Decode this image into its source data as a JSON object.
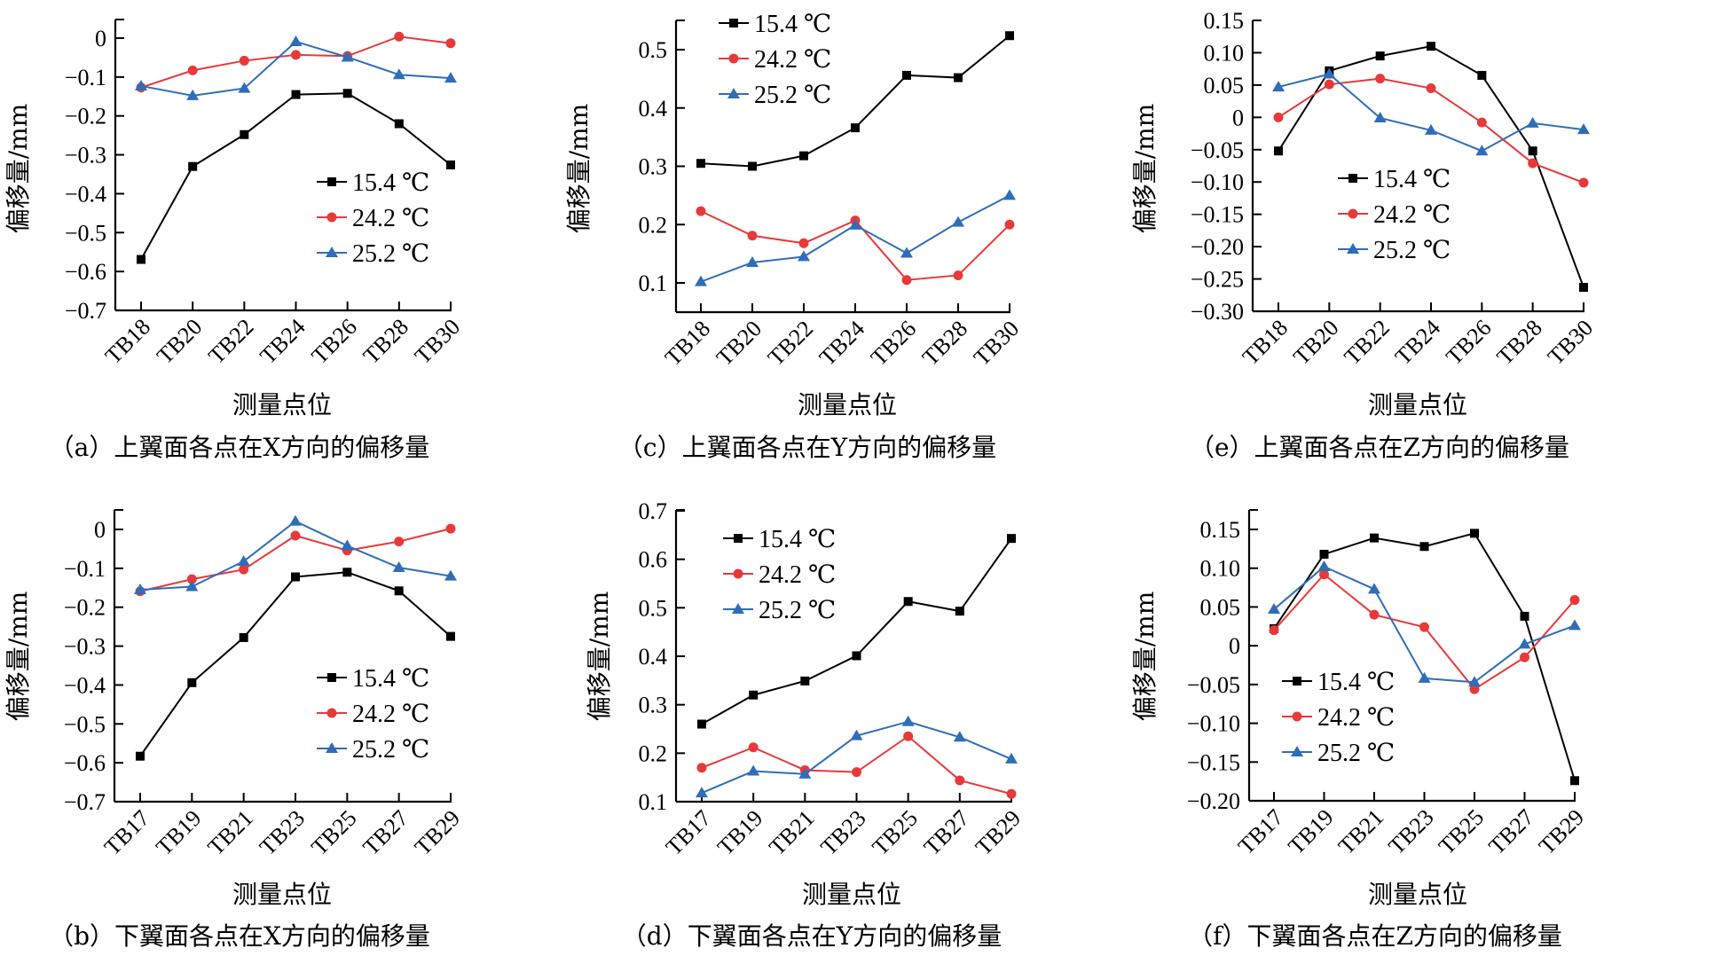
{
  "figure": {
    "panel_ids": [
      "a",
      "c",
      "e",
      "b",
      "d",
      "f"
    ]
  },
  "chart_data": [
    {
      "id": "a",
      "type": "line",
      "caption": "（a）上翼面各点在X方向的偏移量",
      "xlabel": "测量点位",
      "ylabel": "偏移量/mm",
      "categories": [
        "TB18",
        "TB20",
        "TB22",
        "TB24",
        "TB26",
        "TB28",
        "TB30"
      ],
      "yticks": [
        0,
        -0.1,
        -0.2,
        -0.3,
        -0.4,
        -0.5,
        -0.6,
        -0.7
      ],
      "ytick_labels": [
        "0",
        "−0.1",
        "−0.2",
        "−0.3",
        "−0.4",
        "−0.5",
        "−0.6",
        "−0.7"
      ],
      "ylim": [
        -0.7,
        0.05
      ],
      "legend_position": "center-right",
      "series": [
        {
          "name": "15.4 ℃",
          "color": "#000000",
          "marker": "square",
          "values": [
            -0.569,
            -0.33,
            -0.248,
            -0.145,
            -0.142,
            -0.22,
            -0.326
          ]
        },
        {
          "name": "24.2 ℃",
          "color": "#e8393a",
          "marker": "circle",
          "values": [
            -0.127,
            -0.083,
            -0.058,
            -0.043,
            -0.046,
            0.004,
            -0.013
          ]
        },
        {
          "name": "25.2 ℃",
          "color": "#2f6db8",
          "marker": "triangle",
          "values": [
            -0.123,
            -0.148,
            -0.129,
            -0.009,
            -0.049,
            -0.094,
            -0.103
          ]
        }
      ]
    },
    {
      "id": "c",
      "type": "line",
      "caption": "（c）上翼面各点在Y方向的偏移量",
      "xlabel": "测量点位",
      "ylabel": "偏移量/mm",
      "categories": [
        "TB18",
        "TB20",
        "TB22",
        "TB24",
        "TB26",
        "TB28",
        "TB30"
      ],
      "yticks": [
        0.1,
        0.2,
        0.3,
        0.4,
        0.5
      ],
      "ytick_labels": [
        "0.1",
        "0.2",
        "0.3",
        "0.4",
        "0.5"
      ],
      "ylim": [
        0.05,
        0.55
      ],
      "legend_position": "top-left",
      "series": [
        {
          "name": "15.4 ℃",
          "color": "#000000",
          "marker": "square",
          "values": [
            0.305,
            0.3,
            0.318,
            0.366,
            0.456,
            0.452,
            0.524
          ]
        },
        {
          "name": "24.2 ℃",
          "color": "#e8393a",
          "marker": "circle",
          "values": [
            0.223,
            0.181,
            0.168,
            0.207,
            0.105,
            0.113,
            0.2
          ]
        },
        {
          "name": "25.2 ℃",
          "color": "#2f6db8",
          "marker": "triangle",
          "values": [
            0.102,
            0.135,
            0.145,
            0.199,
            0.151,
            0.204,
            0.25
          ]
        }
      ]
    },
    {
      "id": "e",
      "type": "line",
      "caption": "（e）上翼面各点在Z方向的偏移量",
      "xlabel": "测量点位",
      "ylabel": "偏移量/mm",
      "categories": [
        "TB18",
        "TB20",
        "TB22",
        "TB24",
        "TB26",
        "TB28",
        "TB30"
      ],
      "yticks": [
        0.15,
        0.1,
        0.05,
        0,
        -0.05,
        -0.1,
        -0.15,
        -0.2,
        -0.25,
        -0.3
      ],
      "ytick_labels": [
        "0.15",
        "0.10",
        "0.05",
        "0",
        "−0.05",
        "−0.10",
        "−0.15",
        "−0.20",
        "−0.25",
        "−0.30"
      ],
      "ylim": [
        -0.3,
        0.15
      ],
      "legend_position": "center-left",
      "series": [
        {
          "name": "15.4 ℃",
          "color": "#000000",
          "marker": "square",
          "values": [
            -0.052,
            0.072,
            0.095,
            0.11,
            0.065,
            -0.052,
            -0.263
          ]
        },
        {
          "name": "24.2 ℃",
          "color": "#e8393a",
          "marker": "circle",
          "values": [
            0.0,
            0.051,
            0.06,
            0.045,
            -0.008,
            -0.071,
            -0.101
          ]
        },
        {
          "name": "25.2 ℃",
          "color": "#2f6db8",
          "marker": "triangle",
          "values": [
            0.047,
            0.067,
            -0.001,
            -0.02,
            -0.052,
            -0.009,
            -0.019
          ]
        }
      ]
    },
    {
      "id": "b",
      "type": "line",
      "caption": "（b）下翼面各点在X方向的偏移量",
      "xlabel": "测量点位",
      "ylabel": "偏移量/mm",
      "categories": [
        "TB17",
        "TB19",
        "TB21",
        "TB23",
        "TB25",
        "TB27",
        "TB29"
      ],
      "yticks": [
        0,
        -0.1,
        -0.2,
        -0.3,
        -0.4,
        -0.5,
        -0.6,
        -0.7
      ],
      "ytick_labels": [
        "0",
        "−0.1",
        "−0.2",
        "−0.3",
        "−0.4",
        "−0.5",
        "−0.6",
        "−0.7"
      ],
      "ylim": [
        -0.7,
        0.05
      ],
      "legend_position": "center-right",
      "series": [
        {
          "name": "15.4 ℃",
          "color": "#000000",
          "marker": "square",
          "values": [
            -0.583,
            -0.394,
            -0.278,
            -0.122,
            -0.11,
            -0.158,
            -0.275
          ]
        },
        {
          "name": "24.2 ℃",
          "color": "#e8393a",
          "marker": "circle",
          "values": [
            -0.159,
            -0.128,
            -0.103,
            -0.016,
            -0.054,
            -0.031,
            0.002
          ]
        },
        {
          "name": "25.2 ℃",
          "color": "#2f6db8",
          "marker": "triangle",
          "values": [
            -0.155,
            -0.147,
            -0.082,
            0.021,
            -0.042,
            -0.098,
            -0.12
          ]
        }
      ]
    },
    {
      "id": "d",
      "type": "line",
      "caption": "（d）下翼面各点在Y方向的偏移量",
      "xlabel": "测量点位",
      "ylabel": "偏移量/mm",
      "categories": [
        "TB17",
        "TB19",
        "TB21",
        "TB23",
        "TB25",
        "TB27",
        "TB29"
      ],
      "yticks": [
        0.1,
        0.2,
        0.3,
        0.4,
        0.5,
        0.6,
        0.7
      ],
      "ytick_labels": [
        "0.1",
        "0.2",
        "0.3",
        "0.4",
        "0.5",
        "0.6",
        "0.7"
      ],
      "ylim": [
        0.1,
        0.7
      ],
      "legend_position": "top-left",
      "series": [
        {
          "name": "15.4 ℃",
          "color": "#000000",
          "marker": "square",
          "values": [
            0.26,
            0.32,
            0.349,
            0.401,
            0.513,
            0.493,
            0.643
          ]
        },
        {
          "name": "24.2 ℃",
          "color": "#e8393a",
          "marker": "circle",
          "values": [
            0.17,
            0.212,
            0.165,
            0.161,
            0.235,
            0.144,
            0.116
          ]
        },
        {
          "name": "25.2 ℃",
          "color": "#2f6db8",
          "marker": "triangle",
          "values": [
            0.118,
            0.163,
            0.157,
            0.236,
            0.265,
            0.233,
            0.188
          ]
        }
      ]
    },
    {
      "id": "f",
      "type": "line",
      "caption": "（f）下翼面各点在Z方向的偏移量",
      "xlabel": "测量点位",
      "ylabel": "偏移量/mm",
      "categories": [
        "TB17",
        "TB19",
        "TB21",
        "TB23",
        "TB25",
        "TB27",
        "TB29"
      ],
      "yticks": [
        0.15,
        0.1,
        0.05,
        0,
        -0.05,
        -0.1,
        -0.15,
        -0.2
      ],
      "ytick_labels": [
        "0.15",
        "0.10",
        "0.05",
        "0",
        "−0.05",
        "−0.10",
        "−0.15",
        "−0.20"
      ],
      "ylim": [
        -0.2,
        0.175
      ],
      "legend_position": "center-left",
      "series": [
        {
          "name": "15.4 ℃",
          "color": "#000000",
          "marker": "square",
          "values": [
            0.022,
            0.118,
            0.139,
            0.128,
            0.145,
            0.038,
            -0.174
          ]
        },
        {
          "name": "24.2 ℃",
          "color": "#e8393a",
          "marker": "circle",
          "values": [
            0.02,
            0.092,
            0.04,
            0.024,
            -0.056,
            -0.015,
            0.059
          ]
        },
        {
          "name": "25.2 ℃",
          "color": "#2f6db8",
          "marker": "triangle",
          "values": [
            0.047,
            0.102,
            0.073,
            -0.042,
            -0.047,
            0.002,
            0.026
          ]
        }
      ]
    }
  ]
}
